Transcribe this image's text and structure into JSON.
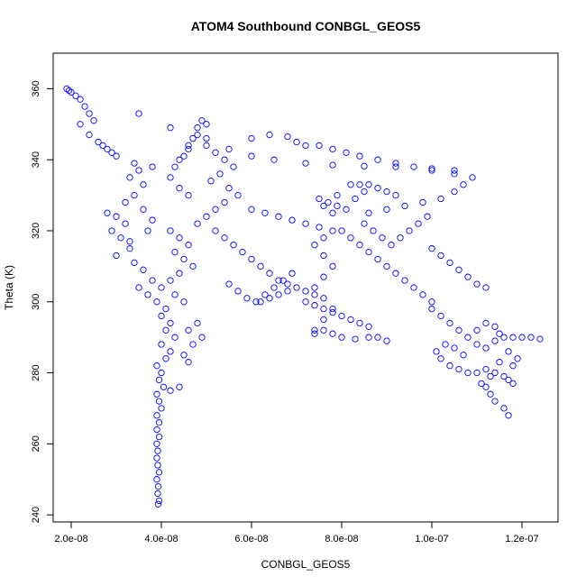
{
  "chart_data": {
    "type": "scatter",
    "title": "ATOM4 Southbound CONBGL_GEOS5",
    "xlabel": "CONBGL_GEOS5",
    "ylabel": "Theta (K)",
    "xlim": [
      1.6e-08,
      1.28e-07
    ],
    "ylim": [
      238,
      370
    ],
    "xticks": [
      2e-08,
      4e-08,
      6e-08,
      8e-08,
      1e-07,
      1.2e-07
    ],
    "xtick_labels": [
      "2.0e-08",
      "4.0e-08",
      "6.0e-08",
      "8.0e-08",
      "1.0e-07",
      "1.2e-07"
    ],
    "yticks": [
      240,
      260,
      280,
      300,
      320,
      340,
      360
    ],
    "ytick_labels": [
      "240",
      "260",
      "280",
      "300",
      "320",
      "340",
      "360"
    ],
    "point_color": "#0000ff",
    "marker": "open-circle",
    "grid": false,
    "series": [
      {
        "points": [
          [
            1.9e-08,
            360
          ],
          [
            1.95e-08,
            359.5
          ],
          [
            2e-08,
            359
          ],
          [
            2.1e-08,
            358
          ],
          [
            2.2e-08,
            357
          ],
          [
            2.3e-08,
            355
          ],
          [
            2.4e-08,
            353
          ],
          [
            2.5e-08,
            351
          ],
          [
            2.2e-08,
            350
          ],
          [
            2.4e-08,
            347
          ],
          [
            2.6e-08,
            345
          ],
          [
            2.7e-08,
            344
          ],
          [
            2.8e-08,
            343
          ],
          [
            2.9e-08,
            342
          ],
          [
            3e-08,
            341
          ],
          [
            3.5e-08,
            353
          ],
          [
            4.2e-08,
            349
          ],
          [
            5e-08,
            346
          ],
          [
            5.5e-08,
            343
          ],
          [
            6e-08,
            341
          ],
          [
            6.5e-08,
            340
          ],
          [
            7.2e-08,
            339
          ],
          [
            7.8e-08,
            338.5
          ],
          [
            8.5e-08,
            338.2
          ],
          [
            9.2e-08,
            338
          ],
          [
            1e-07,
            337.5
          ],
          [
            1.05e-07,
            337
          ],
          [
            6e-08,
            346
          ],
          [
            6.4e-08,
            347
          ],
          [
            6.8e-08,
            346.5
          ],
          [
            7e-08,
            345
          ],
          [
            7.2e-08,
            344
          ],
          [
            7.5e-08,
            344
          ],
          [
            7.8e-08,
            343
          ],
          [
            8.1e-08,
            342
          ],
          [
            8.4e-08,
            341
          ],
          [
            8.8e-08,
            340
          ],
          [
            9.2e-08,
            339
          ],
          [
            9.6e-08,
            338
          ],
          [
            1e-07,
            337
          ],
          [
            1.05e-07,
            336
          ],
          [
            1.09e-07,
            335
          ],
          [
            1.07e-07,
            333
          ],
          [
            1.05e-07,
            331
          ],
          [
            1.02e-07,
            329
          ],
          [
            9.8e-08,
            328
          ],
          [
            9.4e-08,
            327
          ],
          [
            9e-08,
            326
          ],
          [
            8.6e-08,
            325
          ],
          [
            2.8e-08,
            325
          ],
          [
            3e-08,
            324
          ],
          [
            3.2e-08,
            322
          ],
          [
            2.9e-08,
            320
          ],
          [
            3.1e-08,
            318
          ],
          [
            3.3e-08,
            315
          ],
          [
            3e-08,
            313
          ],
          [
            3.4e-08,
            311
          ],
          [
            3.6e-08,
            309
          ],
          [
            3.8e-08,
            306
          ],
          [
            3.5e-08,
            304
          ],
          [
            3.7e-08,
            302
          ],
          [
            3.9e-08,
            300
          ],
          [
            3.2e-08,
            328
          ],
          [
            3.4e-08,
            330
          ],
          [
            3.6e-08,
            333
          ],
          [
            3.3e-08,
            335
          ],
          [
            3.5e-08,
            337
          ],
          [
            3.8e-08,
            338
          ],
          [
            3.4e-08,
            339
          ],
          [
            3.6e-08,
            326
          ],
          [
            3.8e-08,
            323
          ],
          [
            3.7e-08,
            320
          ],
          [
            3.3e-08,
            317
          ],
          [
            4.4e-08,
            340
          ],
          [
            4.6e-08,
            343
          ],
          [
            4.7e-08,
            346
          ],
          [
            4.8e-08,
            349
          ],
          [
            4.9e-08,
            351
          ],
          [
            5e-08,
            350
          ],
          [
            4.8e-08,
            347
          ],
          [
            4.6e-08,
            344
          ],
          [
            4.5e-08,
            341
          ],
          [
            4.3e-08,
            338
          ],
          [
            4.2e-08,
            335
          ],
          [
            4.4e-08,
            332
          ],
          [
            4.6e-08,
            330
          ],
          [
            5e-08,
            344
          ],
          [
            5.2e-08,
            342
          ],
          [
            5.4e-08,
            340
          ],
          [
            5.6e-08,
            338
          ],
          [
            5.3e-08,
            336
          ],
          [
            5.1e-08,
            334
          ],
          [
            5.5e-08,
            332
          ],
          [
            5.7e-08,
            330
          ],
          [
            5.4e-08,
            328
          ],
          [
            5.2e-08,
            326
          ],
          [
            5e-08,
            324
          ],
          [
            4.8e-08,
            322
          ],
          [
            4.2e-08,
            320
          ],
          [
            4.4e-08,
            318
          ],
          [
            4.6e-08,
            316
          ],
          [
            4.3e-08,
            314
          ],
          [
            4.5e-08,
            312
          ],
          [
            4.7e-08,
            310
          ],
          [
            4.4e-08,
            308
          ],
          [
            4.2e-08,
            306
          ],
          [
            4e-08,
            304
          ],
          [
            4.3e-08,
            302
          ],
          [
            4.5e-08,
            300
          ],
          [
            4.1e-08,
            298
          ],
          [
            4e-08,
            296
          ],
          [
            4.2e-08,
            294
          ],
          [
            4.1e-08,
            292
          ],
          [
            4.3e-08,
            290
          ],
          [
            4e-08,
            288
          ],
          [
            4.2e-08,
            286
          ],
          [
            4.1e-08,
            284
          ],
          [
            3.9e-08,
            282
          ],
          [
            4e-08,
            280
          ],
          [
            3.95e-08,
            278
          ],
          [
            4.05e-08,
            276
          ],
          [
            3.9e-08,
            274
          ],
          [
            3.95e-08,
            272
          ],
          [
            4e-08,
            270
          ],
          [
            3.9e-08,
            268
          ],
          [
            3.95e-08,
            266
          ],
          [
            3.9e-08,
            264
          ],
          [
            3.95e-08,
            262
          ],
          [
            3.9e-08,
            260
          ],
          [
            3.92e-08,
            258
          ],
          [
            3.9e-08,
            256
          ],
          [
            3.92e-08,
            254
          ],
          [
            3.95e-08,
            252
          ],
          [
            3.9e-08,
            250
          ],
          [
            3.93e-08,
            248
          ],
          [
            3.92e-08,
            246
          ],
          [
            3.95e-08,
            244
          ],
          [
            3.93e-08,
            243
          ],
          [
            4.2e-08,
            275
          ],
          [
            4.4e-08,
            276
          ],
          [
            4.6e-08,
            283
          ],
          [
            4.5e-08,
            285
          ],
          [
            4.7e-08,
            288
          ],
          [
            4.9e-08,
            290
          ],
          [
            4.6e-08,
            292
          ],
          [
            4.8e-08,
            294
          ],
          [
            5.2e-08,
            320
          ],
          [
            5.4e-08,
            318
          ],
          [
            5.6e-08,
            316
          ],
          [
            5.8e-08,
            314
          ],
          [
            6e-08,
            312
          ],
          [
            6.2e-08,
            310
          ],
          [
            6.4e-08,
            308
          ],
          [
            6.6e-08,
            306
          ],
          [
            6.8e-08,
            305
          ],
          [
            7e-08,
            304
          ],
          [
            7.2e-08,
            303
          ],
          [
            7.4e-08,
            302
          ],
          [
            5.5e-08,
            305
          ],
          [
            5.7e-08,
            303
          ],
          [
            5.9e-08,
            301
          ],
          [
            6.1e-08,
            300
          ],
          [
            6.3e-08,
            302
          ],
          [
            6.5e-08,
            304
          ],
          [
            6.7e-08,
            306
          ],
          [
            6.9e-08,
            308
          ],
          [
            6e-08,
            326
          ],
          [
            6.3e-08,
            325
          ],
          [
            6.6e-08,
            324
          ],
          [
            6.9e-08,
            323
          ],
          [
            7.2e-08,
            322
          ],
          [
            7.5e-08,
            321
          ],
          [
            7.8e-08,
            320
          ],
          [
            7.5e-08,
            329
          ],
          [
            7.7e-08,
            328
          ],
          [
            7.9e-08,
            327
          ],
          [
            8.1e-08,
            326
          ],
          [
            7.8e-08,
            325
          ],
          [
            7.6e-08,
            327
          ],
          [
            7.9e-08,
            330
          ],
          [
            8.2e-08,
            333
          ],
          [
            8.4e-08,
            333
          ],
          [
            8.6e-08,
            333
          ],
          [
            8.8e-08,
            332
          ],
          [
            9e-08,
            331
          ],
          [
            9.2e-08,
            330
          ],
          [
            8.5e-08,
            331
          ],
          [
            8.3e-08,
            329
          ],
          [
            8e-08,
            320
          ],
          [
            8.2e-08,
            318
          ],
          [
            8.4e-08,
            316
          ],
          [
            8.6e-08,
            314
          ],
          [
            8.8e-08,
            312
          ],
          [
            9e-08,
            310
          ],
          [
            9.2e-08,
            308
          ],
          [
            9.4e-08,
            306
          ],
          [
            9.6e-08,
            304
          ],
          [
            9.8e-08,
            302
          ],
          [
            1e-07,
            300
          ],
          [
            7.6e-08,
            318
          ],
          [
            7.4e-08,
            316
          ],
          [
            7.6e-08,
            313
          ],
          [
            7.8e-08,
            310
          ],
          [
            7.6e-08,
            307
          ],
          [
            7.4e-08,
            304
          ],
          [
            7.6e-08,
            301
          ],
          [
            7.8e-08,
            298
          ],
          [
            7.6e-08,
            295
          ],
          [
            7.4e-08,
            292
          ],
          [
            8.5e-08,
            322
          ],
          [
            8.7e-08,
            320
          ],
          [
            8.9e-08,
            318
          ],
          [
            9.1e-08,
            316
          ],
          [
            9.3e-08,
            318
          ],
          [
            9.5e-08,
            320
          ],
          [
            9.7e-08,
            322
          ],
          [
            9.9e-08,
            324
          ],
          [
            1e-07,
            315
          ],
          [
            1.02e-07,
            313
          ],
          [
            1.04e-07,
            311
          ],
          [
            1.06e-07,
            309
          ],
          [
            1.08e-07,
            307
          ],
          [
            1.1e-07,
            305
          ],
          [
            1.12e-07,
            304
          ],
          [
            1e-07,
            298
          ],
          [
            1.02e-07,
            296
          ],
          [
            1.04e-07,
            294
          ],
          [
            1.06e-07,
            292
          ],
          [
            1.08e-07,
            290
          ],
          [
            1.1e-07,
            288
          ],
          [
            1.12e-07,
            287
          ],
          [
            1.14e-07,
            289
          ],
          [
            1.16e-07,
            290
          ],
          [
            1.18e-07,
            290
          ],
          [
            1.2e-07,
            290
          ],
          [
            1.22e-07,
            290
          ],
          [
            1.24e-07,
            289.5
          ],
          [
            1.1e-07,
            292
          ],
          [
            1.12e-07,
            294
          ],
          [
            1.14e-07,
            293
          ],
          [
            1.15e-07,
            291
          ],
          [
            1.02e-07,
            284
          ],
          [
            1.04e-07,
            282
          ],
          [
            1.06e-07,
            281
          ],
          [
            1.08e-07,
            280
          ],
          [
            1.1e-07,
            280
          ],
          [
            1.12e-07,
            281
          ],
          [
            1.14e-07,
            280
          ],
          [
            1.16e-07,
            279
          ],
          [
            1.18e-07,
            282
          ],
          [
            1.19e-07,
            284
          ],
          [
            1.17e-07,
            286
          ],
          [
            1.15e-07,
            283
          ],
          [
            1.13e-07,
            279
          ],
          [
            1.11e-07,
            277
          ],
          [
            1.12e-07,
            276
          ],
          [
            1.13e-07,
            274
          ],
          [
            1.14e-07,
            272
          ],
          [
            1.16e-07,
            270
          ],
          [
            1.17e-07,
            268
          ],
          [
            1.18e-07,
            277
          ],
          [
            1.17e-07,
            278
          ],
          [
            1.01e-07,
            286
          ],
          [
            1.03e-07,
            288
          ],
          [
            1.05e-07,
            287
          ],
          [
            1.07e-07,
            285
          ],
          [
            9e-08,
            289
          ],
          [
            8.8e-08,
            290
          ],
          [
            8.6e-08,
            290
          ],
          [
            8.3e-08,
            289.5
          ],
          [
            8e-08,
            290
          ],
          [
            7.8e-08,
            291
          ],
          [
            7.6e-08,
            292
          ],
          [
            7.4e-08,
            291
          ],
          [
            7.2e-08,
            300
          ],
          [
            7.4e-08,
            299
          ],
          [
            7.6e-08,
            298
          ],
          [
            7.8e-08,
            297
          ],
          [
            8e-08,
            296
          ],
          [
            8.2e-08,
            295
          ],
          [
            8.4e-08,
            294
          ],
          [
            8.6e-08,
            293
          ],
          [
            6.2e-08,
            300
          ],
          [
            6.4e-08,
            301
          ],
          [
            6.6e-08,
            302
          ],
          [
            6.8e-08,
            303
          ]
        ]
      }
    ]
  }
}
